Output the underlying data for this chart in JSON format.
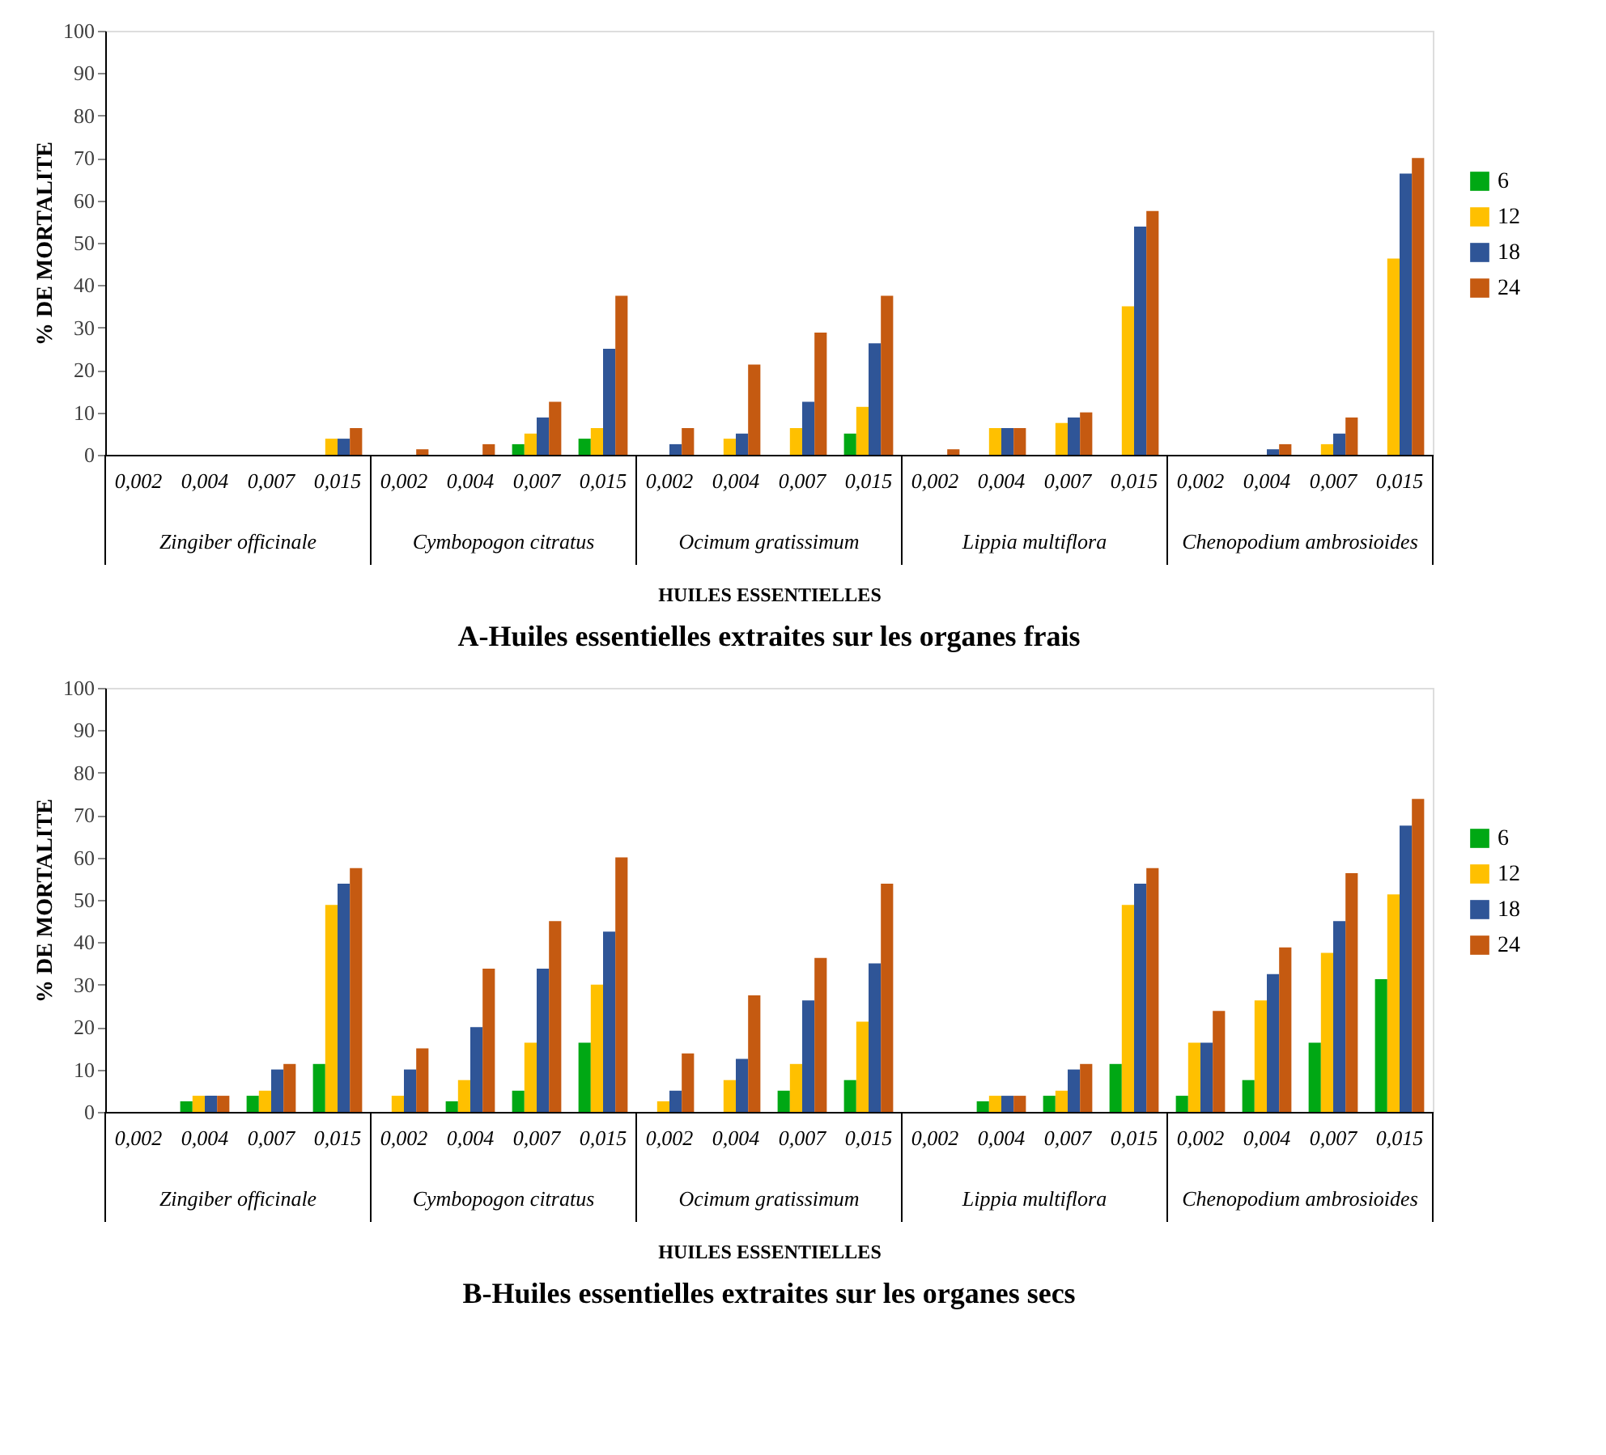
{
  "chart_data": [
    {
      "type": "bar",
      "title": "A-Huiles essentielles extraites sur les organes frais",
      "xlabel": "HUILES ESSENTIELLES",
      "ylabel": "% DE MORTALITE",
      "categories": [
        "0,002",
        "0,004",
        "0,007",
        "0,015",
        "0,002",
        "0,004",
        "0,007",
        "0,015",
        "0,002",
        "0,004",
        "0,007",
        "0,015",
        "0,002",
        "0,004",
        "0,007",
        "0,015",
        "0,002",
        "0,004",
        "0,007",
        "0,015"
      ],
      "annotations": [
        "Zingiber officinale",
        "Cymbopogon citratus",
        "Ocimum gratissimum",
        "Lippia multiflora",
        "Chenopodium ambrosioides"
      ],
      "series": [
        {
          "name": "6",
          "color": "#00a814",
          "values": [
            0,
            0,
            0,
            0,
            0,
            0,
            2.5,
            3.8,
            0,
            0,
            0,
            5,
            0,
            0,
            0,
            0,
            0,
            0,
            0,
            0
          ]
        },
        {
          "name": "12",
          "color": "#ffc000",
          "values": [
            0,
            0,
            0,
            3.8,
            0,
            0,
            5,
            6.3,
            0,
            3.8,
            6.3,
            11.3,
            0,
            6.3,
            7.5,
            35,
            0,
            0,
            2.5,
            46.3
          ]
        },
        {
          "name": "18",
          "color": "#2f5597",
          "values": [
            0,
            0,
            0,
            3.8,
            0,
            0,
            8.8,
            25,
            2.5,
            5,
            12.5,
            26.3,
            0,
            6.3,
            8.8,
            53.8,
            0,
            1.3,
            5,
            66.3
          ]
        },
        {
          "name": "24",
          "color": "#c55a11",
          "values": [
            0,
            0,
            0,
            6.3,
            1.3,
            2.5,
            12.5,
            37.5,
            6.3,
            21.3,
            28.8,
            37.5,
            1.3,
            6.3,
            10,
            57.5,
            0,
            2.5,
            8.8,
            70
          ]
        }
      ],
      "ylim": [
        0,
        100
      ],
      "yticks": [
        0,
        10,
        20,
        30,
        40,
        50,
        60,
        70,
        80,
        90,
        100
      ],
      "grid": false,
      "legend": "right"
    },
    {
      "type": "bar",
      "title": "B-Huiles essentielles extraites sur les organes secs",
      "xlabel": "HUILES ESSENTIELLES",
      "ylabel": "% DE MORTALITE",
      "categories": [
        "0,002",
        "0,004",
        "0,007",
        "0,015",
        "0,002",
        "0,004",
        "0,007",
        "0,015",
        "0,002",
        "0,004",
        "0,007",
        "0,015",
        "0,002",
        "0,004",
        "0,007",
        "0,015",
        "0,002",
        "0,004",
        "0,007",
        "0,015"
      ],
      "annotations": [
        "Zingiber officinale",
        "Cymbopogon citratus",
        "Ocimum gratissimum",
        "Lippia multiflora",
        "Chenopodium ambrosioides"
      ],
      "series": [
        {
          "name": "6",
          "color": "#00a814",
          "values": [
            0,
            2.5,
            3.8,
            11.3,
            0,
            2.5,
            5,
            16.3,
            0,
            0,
            5,
            7.5,
            0,
            2.5,
            3.8,
            11.3,
            3.8,
            7.5,
            16.3,
            31.3
          ]
        },
        {
          "name": "12",
          "color": "#ffc000",
          "values": [
            0,
            3.8,
            5,
            48.8,
            3.8,
            7.5,
            16.3,
            30,
            2.5,
            7.5,
            11.3,
            21.3,
            0,
            3.8,
            5,
            48.8,
            16.3,
            26.3,
            37.5,
            51.3
          ]
        },
        {
          "name": "18",
          "color": "#2f5597",
          "values": [
            0,
            3.8,
            10,
            53.8,
            10,
            20,
            33.8,
            42.5,
            5,
            12.5,
            26.3,
            35,
            0,
            3.8,
            10,
            53.8,
            16.3,
            32.5,
            45,
            67.5
          ]
        },
        {
          "name": "24",
          "color": "#c55a11",
          "values": [
            0,
            3.8,
            11.3,
            57.5,
            15,
            33.8,
            45,
            60,
            13.8,
            27.5,
            36.3,
            53.8,
            0,
            3.8,
            11.3,
            57.5,
            23.8,
            38.8,
            56.3,
            73.8
          ]
        }
      ],
      "ylim": [
        0,
        100
      ],
      "yticks": [
        0,
        10,
        20,
        30,
        40,
        50,
        60,
        70,
        80,
        90,
        100
      ],
      "grid": false,
      "legend": "right"
    }
  ]
}
